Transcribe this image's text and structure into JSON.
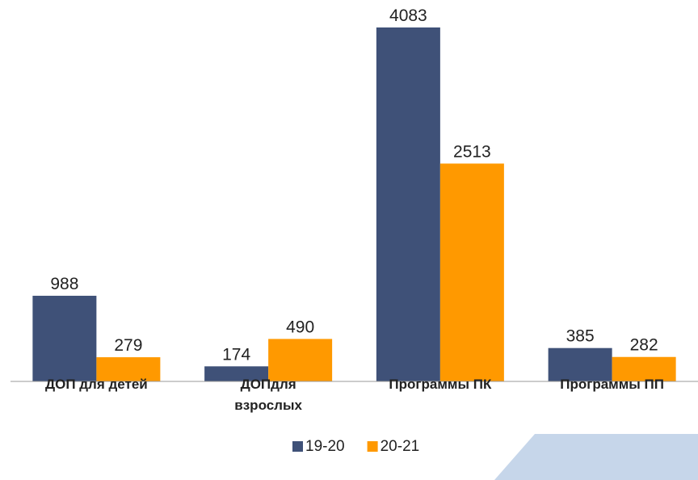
{
  "chart_data": {
    "type": "bar",
    "categories": [
      "ДОП для детей",
      "ДОПдля взрослых",
      "Программы ПК",
      "Программы ПП"
    ],
    "series": [
      {
        "name": "19-20",
        "color": "#3f5178",
        "values": [
          988,
          174,
          4083,
          385
        ]
      },
      {
        "name": "20-21",
        "color": "#ff9900",
        "values": [
          279,
          490,
          2513,
          282
        ]
      }
    ],
    "legend": "bottom"
  }
}
